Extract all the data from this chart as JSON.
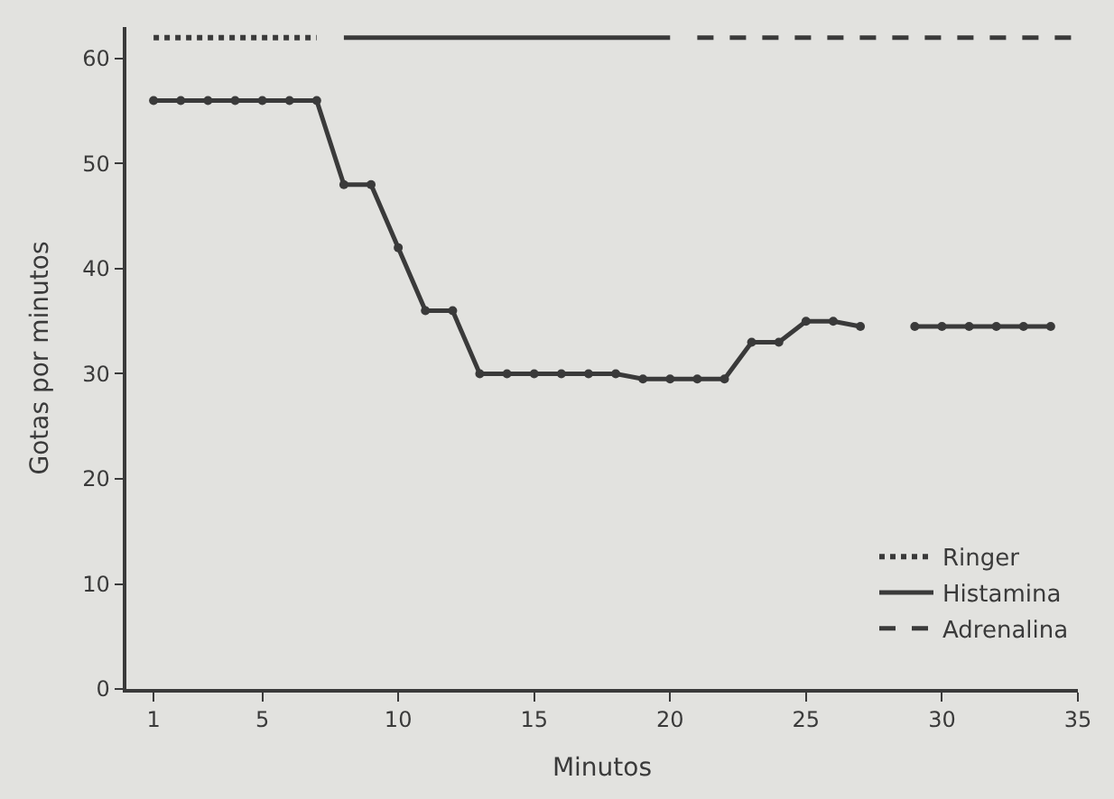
{
  "chart_data": {
    "type": "line",
    "xlabel": "Minutos",
    "ylabel": "Gotas por minutos",
    "xlim": [
      0,
      35
    ],
    "ylim": [
      0,
      63
    ],
    "xticks": [
      1,
      5,
      10,
      15,
      20,
      25,
      30,
      35
    ],
    "yticks": [
      0,
      10,
      20,
      30,
      40,
      50,
      60
    ],
    "grid": false,
    "legend": "bottom right",
    "series": [
      {
        "color": "#3a3a3a",
        "marker": "circle",
        "line_style": "solid",
        "x": [
          1,
          2,
          3,
          4,
          5,
          6,
          7,
          8,
          9,
          10,
          11,
          12,
          13,
          14,
          15,
          16,
          17,
          18,
          19,
          20,
          21,
          22,
          23,
          24,
          25,
          26,
          27,
          28,
          29,
          30,
          31,
          32,
          33,
          34
        ],
        "values": [
          56,
          56,
          56,
          56,
          56,
          56,
          56,
          48,
          48,
          42,
          36,
          36,
          30,
          30,
          30,
          30,
          30,
          30,
          29.5,
          29.5,
          29.5,
          29.5,
          33,
          33,
          35,
          35,
          34.5,
          null,
          34.5,
          34.5,
          34.5,
          34.5,
          34.5,
          34.5
        ]
      },
      {
        "name": "Ringer",
        "color": "#3a3a3a",
        "marker": "none",
        "line_style": "dotted",
        "x": [
          1,
          7
        ],
        "values": [
          62,
          62
        ]
      },
      {
        "name": "Histamina",
        "color": "#3a3a3a",
        "marker": "none",
        "line_style": "solid",
        "x": [
          8,
          20
        ],
        "values": [
          62,
          62
        ]
      },
      {
        "name": "Adrenalina",
        "color": "#3a3a3a",
        "marker": "none",
        "line_style": "dashed",
        "x": [
          21,
          35
        ],
        "values": [
          62,
          62
        ]
      }
    ]
  }
}
